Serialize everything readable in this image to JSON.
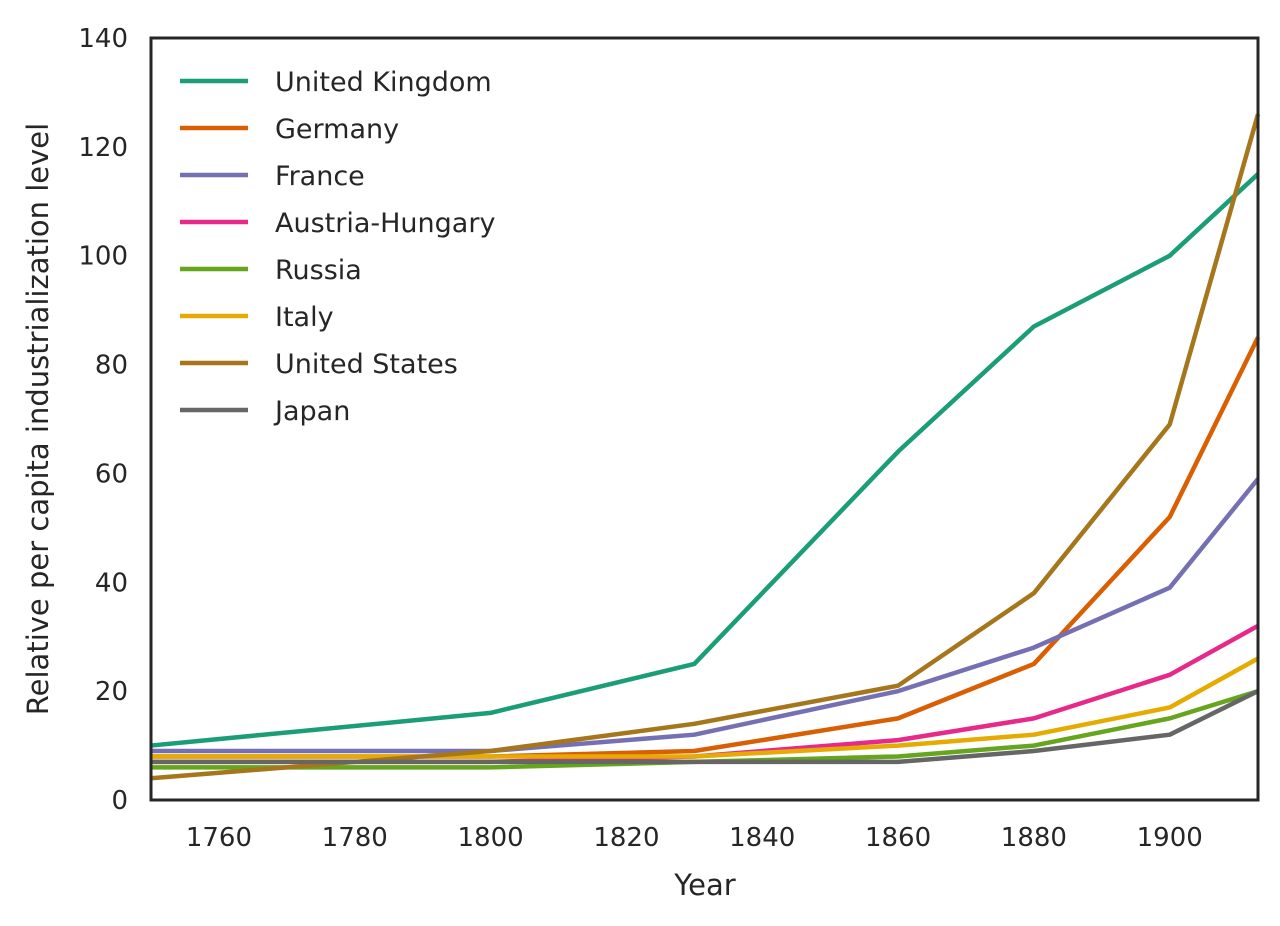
{
  "chart_data": {
    "type": "line",
    "title": "",
    "xlabel": "Year",
    "ylabel": "Relative per capita industrialization level",
    "xlim": [
      1750,
      1913
    ],
    "ylim": [
      0,
      140
    ],
    "xticks": [
      1760,
      1780,
      1800,
      1820,
      1840,
      1860,
      1880,
      1900
    ],
    "yticks": [
      0,
      20,
      40,
      60,
      80,
      100,
      120,
      140
    ],
    "grid": false,
    "legend_position": "top-left",
    "x": [
      1750,
      1800,
      1830,
      1860,
      1880,
      1900,
      1913
    ],
    "series": [
      {
        "name": "United Kingdom",
        "color": "#1b9e77",
        "values": [
          10,
          16,
          25,
          64,
          87,
          100,
          115
        ]
      },
      {
        "name": "Germany",
        "color": "#d95f02",
        "values": [
          8,
          8,
          9,
          15,
          25,
          52,
          85
        ]
      },
      {
        "name": "France",
        "color": "#7570b3",
        "values": [
          9,
          9,
          12,
          20,
          28,
          39,
          59
        ]
      },
      {
        "name": "Austria-Hungary",
        "color": "#e7298a",
        "values": [
          7,
          7,
          8,
          11,
          15,
          23,
          32
        ]
      },
      {
        "name": "Russia",
        "color": "#66a61e",
        "values": [
          6,
          6,
          7,
          8,
          10,
          15,
          20
        ]
      },
      {
        "name": "Italy",
        "color": "#e6ab02",
        "values": [
          8,
          8,
          8,
          10,
          12,
          17,
          26
        ]
      },
      {
        "name": "United States",
        "color": "#a6761d",
        "values": [
          4,
          9,
          14,
          21,
          38,
          69,
          126
        ]
      },
      {
        "name": "Japan",
        "color": "#666666",
        "values": [
          7,
          7,
          7,
          7,
          9,
          12,
          20
        ]
      }
    ]
  }
}
